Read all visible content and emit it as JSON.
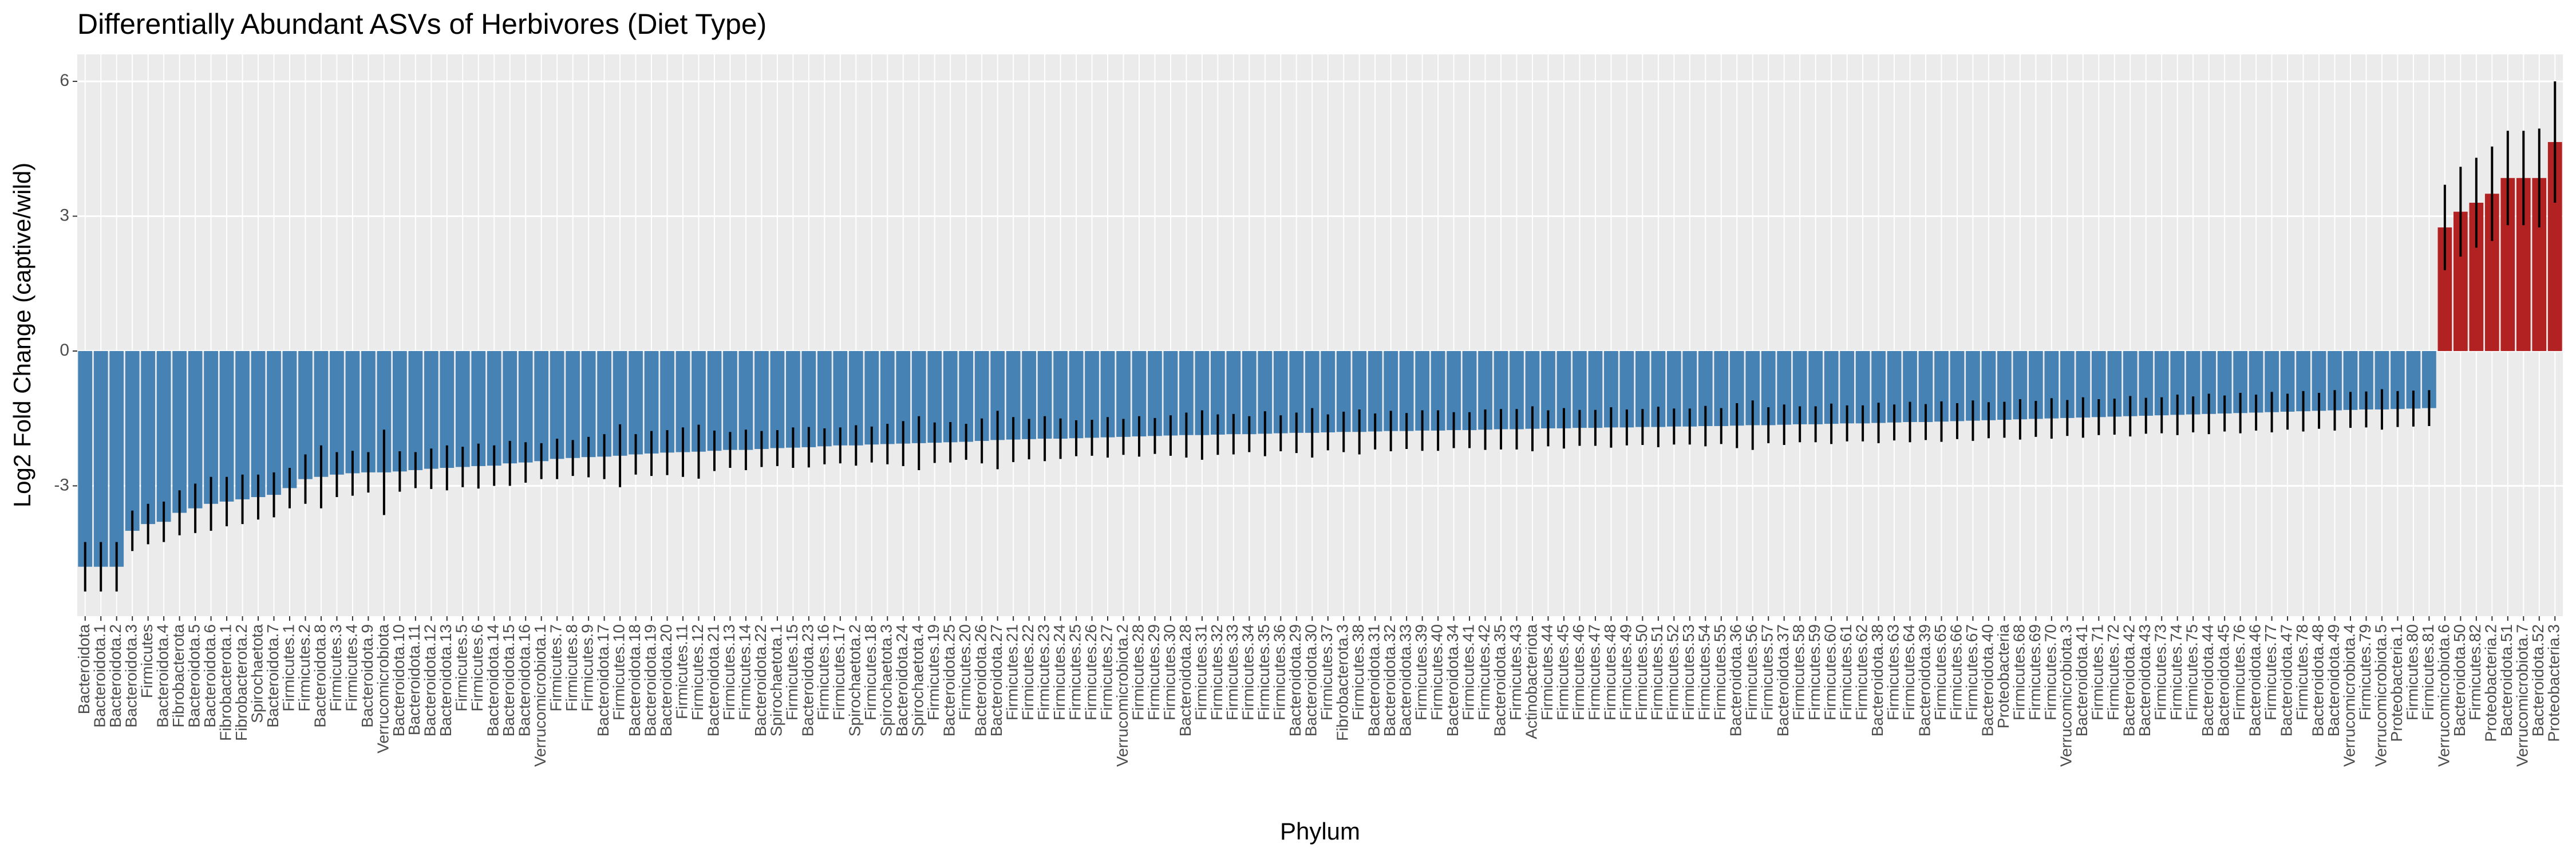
{
  "chart_data": {
    "type": "bar",
    "title": "Differentially Abundant ASVs of Herbivores (Diet Type)",
    "x_label": "Phylum",
    "y_label": "Log2 Fold Change (captive/wild)",
    "categories": [
      "Bacteroidota",
      "Bacteroidota.1",
      "Bacteroidota.2",
      "Bacteroidota.3",
      "Firmicutes",
      "Bacteroidota.4",
      "Fibrobacterota",
      "Bacteroidota.5",
      "Bacteroidota.6",
      "Fibrobacterota.1",
      "Fibrobacterota.2",
      "Spirochaetota",
      "Bacteroidota.7",
      "Firmicutes.1",
      "Firmicutes.2",
      "Bacteroidota.8",
      "Firmicutes.3",
      "Firmicutes.4",
      "Bacteroidota.9",
      "Verrucomicrobiota",
      "Bacteroidota.10",
      "Bacteroidota.11",
      "Bacteroidota.12",
      "Bacteroidota.13",
      "Firmicutes.5",
      "Firmicutes.6",
      "Bacteroidota.14",
      "Bacteroidota.15",
      "Bacteroidota.16",
      "Verrucomicrobiota.1",
      "Firmicutes.7",
      "Firmicutes.8",
      "Firmicutes.9",
      "Bacteroidota.17",
      "Firmicutes.10",
      "Bacteroidota.18",
      "Bacteroidota.19",
      "Bacteroidota.20",
      "Firmicutes.11",
      "Firmicutes.12",
      "Bacteroidota.21",
      "Firmicutes.13",
      "Firmicutes.14",
      "Bacteroidota.22",
      "Spirochaetota.1",
      "Firmicutes.15",
      "Bacteroidota.23",
      "Firmicutes.16",
      "Firmicutes.17",
      "Spirochaetota.2",
      "Firmicutes.18",
      "Spirochaetota.3",
      "Bacteroidota.24",
      "Spirochaetota.4",
      "Firmicutes.19",
      "Bacteroidota.25",
      "Firmicutes.20",
      "Bacteroidota.26",
      "Bacteroidota.27",
      "Firmicutes.21",
      "Firmicutes.22",
      "Firmicutes.23",
      "Firmicutes.24",
      "Firmicutes.25",
      "Firmicutes.26",
      "Firmicutes.27",
      "Verrucomicrobiota.2",
      "Firmicutes.28",
      "Firmicutes.29",
      "Firmicutes.30",
      "Bacteroidota.28",
      "Firmicutes.31",
      "Firmicutes.32",
      "Firmicutes.33",
      "Firmicutes.34",
      "Firmicutes.35",
      "Firmicutes.36",
      "Bacteroidota.29",
      "Bacteroidota.30",
      "Firmicutes.37",
      "Fibrobacterota.3",
      "Firmicutes.38",
      "Bacteroidota.31",
      "Bacteroidota.32",
      "Bacteroidota.33",
      "Firmicutes.39",
      "Firmicutes.40",
      "Bacteroidota.34",
      "Firmicutes.41",
      "Firmicutes.42",
      "Bacteroidota.35",
      "Firmicutes.43",
      "Actinobacteriota",
      "Firmicutes.44",
      "Firmicutes.45",
      "Firmicutes.46",
      "Firmicutes.47",
      "Firmicutes.48",
      "Firmicutes.49",
      "Firmicutes.50",
      "Firmicutes.51",
      "Firmicutes.52",
      "Firmicutes.53",
      "Firmicutes.54",
      "Firmicutes.55",
      "Bacteroidota.36",
      "Firmicutes.56",
      "Firmicutes.57",
      "Bacteroidota.37",
      "Firmicutes.58",
      "Firmicutes.59",
      "Firmicutes.60",
      "Firmicutes.61",
      "Firmicutes.62",
      "Bacteroidota.38",
      "Firmicutes.63",
      "Firmicutes.64",
      "Bacteroidota.39",
      "Firmicutes.65",
      "Firmicutes.66",
      "Firmicutes.67",
      "Bacteroidota.40",
      "Proteobacteria",
      "Firmicutes.68",
      "Firmicutes.69",
      "Firmicutes.70",
      "Verrucomicrobiota.3",
      "Bacteroidota.41",
      "Firmicutes.71",
      "Firmicutes.72",
      "Bacteroidota.42",
      "Bacteroidota.43",
      "Firmicutes.73",
      "Firmicutes.74",
      "Firmicutes.75",
      "Bacteroidota.44",
      "Bacteroidota.45",
      "Firmicutes.76",
      "Bacteroidota.46",
      "Firmicutes.77",
      "Bacteroidota.47",
      "Firmicutes.78",
      "Bacteroidota.48",
      "Bacteroidota.49",
      "Verrucomicrobiota.4",
      "Firmicutes.79",
      "Verrucomicrobiota.5",
      "Proteobacteria.1",
      "Firmicutes.80",
      "Firmicutes.81",
      "Verrucomicrobiota.6",
      "Bacteroidota.50",
      "Firmicutes.82",
      "Proteobacteria.2",
      "Bacteroidota.51",
      "Verrucomicrobiota.7",
      "Bacteroidota.52",
      "Proteobacteria.3"
    ],
    "values": [
      -4.8,
      -4.8,
      -4.8,
      -4.0,
      -3.85,
      -3.8,
      -3.6,
      -3.5,
      -3.4,
      -3.35,
      -3.3,
      -3.25,
      -3.2,
      -3.05,
      -2.85,
      -2.8,
      -2.75,
      -2.72,
      -2.7,
      -2.7,
      -2.68,
      -2.65,
      -2.62,
      -2.6,
      -2.58,
      -2.56,
      -2.55,
      -2.5,
      -2.48,
      -2.45,
      -2.4,
      -2.38,
      -2.36,
      -2.35,
      -2.33,
      -2.3,
      -2.28,
      -2.26,
      -2.25,
      -2.24,
      -2.22,
      -2.2,
      -2.2,
      -2.18,
      -2.16,
      -2.15,
      -2.14,
      -2.12,
      -2.1,
      -2.1,
      -2.08,
      -2.07,
      -2.06,
      -2.05,
      -2.04,
      -2.03,
      -2.02,
      -2.0,
      -1.98,
      -1.97,
      -1.96,
      -1.95,
      -1.95,
      -1.94,
      -1.93,
      -1.92,
      -1.91,
      -1.9,
      -1.89,
      -1.88,
      -1.87,
      -1.87,
      -1.86,
      -1.85,
      -1.85,
      -1.84,
      -1.83,
      -1.82,
      -1.82,
      -1.81,
      -1.8,
      -1.8,
      -1.79,
      -1.78,
      -1.78,
      -1.77,
      -1.77,
      -1.76,
      -1.76,
      -1.75,
      -1.74,
      -1.74,
      -1.73,
      -1.72,
      -1.72,
      -1.71,
      -1.71,
      -1.7,
      -1.7,
      -1.69,
      -1.69,
      -1.68,
      -1.68,
      -1.67,
      -1.67,
      -1.66,
      -1.65,
      -1.65,
      -1.64,
      -1.63,
      -1.63,
      -1.62,
      -1.61,
      -1.61,
      -1.6,
      -1.59,
      -1.58,
      -1.58,
      -1.57,
      -1.56,
      -1.55,
      -1.54,
      -1.53,
      -1.52,
      -1.51,
      -1.5,
      -1.49,
      -1.48,
      -1.47,
      -1.46,
      -1.45,
      -1.44,
      -1.43,
      -1.42,
      -1.41,
      -1.4,
      -1.39,
      -1.38,
      -1.37,
      -1.36,
      -1.35,
      -1.34,
      -1.33,
      -1.32,
      -1.31,
      -1.3,
      -1.3,
      -1.29,
      -1.28,
      -1.27,
      2.75,
      3.1,
      3.3,
      3.5,
      3.85,
      3.85,
      3.85,
      4.65
    ],
    "errors": [
      0.55,
      0.55,
      0.55,
      0.45,
      0.45,
      0.45,
      0.5,
      0.55,
      0.6,
      0.55,
      0.55,
      0.5,
      0.5,
      0.45,
      0.55,
      0.7,
      0.5,
      0.5,
      0.45,
      0.95,
      0.45,
      0.4,
      0.45,
      0.5,
      0.45,
      0.5,
      0.45,
      0.5,
      0.45,
      0.4,
      0.45,
      0.4,
      0.45,
      0.5,
      0.7,
      0.45,
      0.5,
      0.5,
      0.55,
      0.6,
      0.45,
      0.4,
      0.45,
      0.4,
      0.4,
      0.45,
      0.45,
      0.4,
      0.4,
      0.45,
      0.4,
      0.45,
      0.5,
      0.6,
      0.45,
      0.45,
      0.4,
      0.5,
      0.65,
      0.5,
      0.45,
      0.5,
      0.45,
      0.4,
      0.4,
      0.45,
      0.4,
      0.45,
      0.4,
      0.45,
      0.5,
      0.55,
      0.45,
      0.45,
      0.4,
      0.5,
      0.4,
      0.45,
      0.55,
      0.4,
      0.45,
      0.5,
      0.4,
      0.45,
      0.4,
      0.45,
      0.45,
      0.4,
      0.4,
      0.45,
      0.45,
      0.45,
      0.5,
      0.4,
      0.45,
      0.4,
      0.4,
      0.45,
      0.4,
      0.4,
      0.45,
      0.4,
      0.4,
      0.45,
      0.4,
      0.5,
      0.55,
      0.4,
      0.45,
      0.4,
      0.4,
      0.45,
      0.4,
      0.4,
      0.45,
      0.4,
      0.45,
      0.4,
      0.45,
      0.4,
      0.45,
      0.4,
      0.4,
      0.45,
      0.4,
      0.45,
      0.4,
      0.45,
      0.4,
      0.4,
      0.45,
      0.4,
      0.4,
      0.45,
      0.4,
      0.45,
      0.4,
      0.45,
      0.4,
      0.45,
      0.4,
      0.45,
      0.4,
      0.45,
      0.4,
      0.4,
      0.45,
      0.4,
      0.4,
      0.4,
      0.95,
      1.0,
      1.0,
      1.05,
      1.05,
      1.05,
      1.1,
      1.35
    ],
    "bar_colors": {
      "negative": "#4682b4",
      "positive": "#b22222"
    },
    "error_color": "#000000",
    "ylim": [
      -5.9,
      6.6
    ],
    "yticks": [
      -3,
      0,
      3,
      6
    ],
    "grid": true,
    "panel_background": "#ebebeb"
  }
}
